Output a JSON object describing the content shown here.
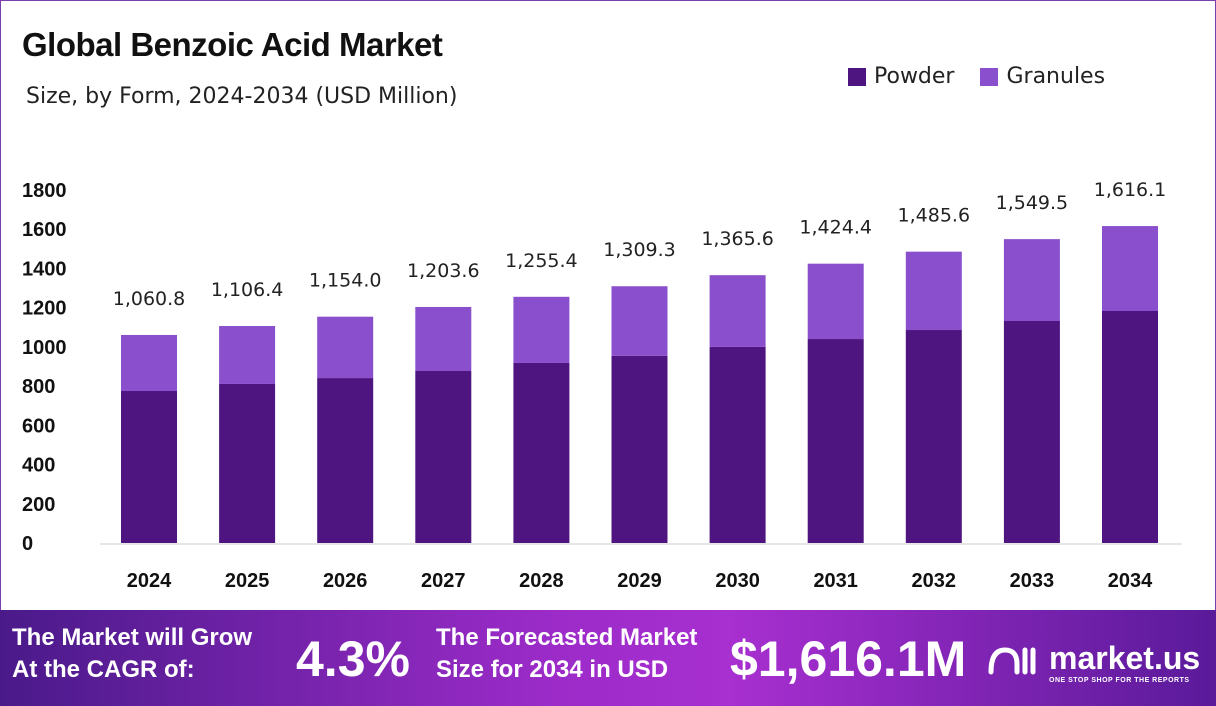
{
  "chart_data": {
    "type": "bar",
    "stacked": true,
    "title": "Global Benzoic Acid Market",
    "subtitle": "Size, by Form, 2024-2034 (USD Million)",
    "categories": [
      "2024",
      "2025",
      "2026",
      "2027",
      "2028",
      "2029",
      "2030",
      "2031",
      "2032",
      "2033",
      "2034"
    ],
    "series": [
      {
        "name": "Powder",
        "color": "#4e1480",
        "values": [
          775,
          811,
          841,
          877,
          918,
          954,
          1000,
          1040,
          1086,
          1132,
          1183
        ]
      },
      {
        "name": "Granules",
        "color": "#8a4fcc",
        "values": [
          285.8,
          295.4,
          313.0,
          326.6,
          337.4,
          355.3,
          365.6,
          384.4,
          399.6,
          417.5,
          433.1
        ]
      }
    ],
    "totals": [
      "1,060.8",
      "1,106.4",
      "1,154.0",
      "1,203.6",
      "1,255.4",
      "1,309.3",
      "1,365.6",
      "1,424.4",
      "1,485.6",
      "1,549.5",
      "1,616.1"
    ],
    "ylim": [
      0,
      1800
    ],
    "yticks": [
      "0",
      "200",
      "400",
      "600",
      "800",
      "1000",
      "1200",
      "1400",
      "1600",
      "1800"
    ],
    "grid": false,
    "legend": "top-right"
  },
  "footer": {
    "cagr_label_1": "The Market will Grow",
    "cagr_label_2": "At the CAGR of:",
    "cagr_value": "4.3%",
    "forecast_label_1": "The Forecasted Market",
    "forecast_label_2": "Size for 2034 in USD",
    "forecast_value": "$1,616.1M",
    "logo_name": "market.us",
    "logo_tagline": "ONE STOP SHOP FOR THE REPORTS"
  }
}
